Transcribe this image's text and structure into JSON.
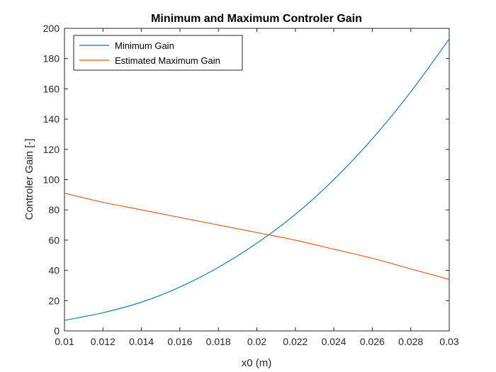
{
  "chart_data": {
    "type": "line",
    "title": "Minimum and Maximum Controler Gain",
    "xlabel": "x0 (m)",
    "ylabel": "Controler Gain [-]",
    "xlim": [
      0.01,
      0.03
    ],
    "ylim": [
      0,
      200
    ],
    "xticks": [
      0.01,
      0.012,
      0.014,
      0.016,
      0.018,
      0.02,
      0.022,
      0.024,
      0.026,
      0.028,
      0.03
    ],
    "xtick_labels": [
      "0.01",
      "0.012",
      "0.014",
      "0.016",
      "0.018",
      "0.02",
      "0.022",
      "0.024",
      "0.026",
      "0.028",
      "0.03"
    ],
    "yticks": [
      0,
      20,
      40,
      60,
      80,
      100,
      120,
      140,
      160,
      180,
      200
    ],
    "ytick_labels": [
      "0",
      "20",
      "40",
      "60",
      "80",
      "100",
      "120",
      "140",
      "160",
      "180",
      "200"
    ],
    "grid": false,
    "legend_position": "top-left",
    "series": [
      {
        "name": "Minimum Gain",
        "color": "#0072BD",
        "x": [
          0.01,
          0.012,
          0.014,
          0.016,
          0.018,
          0.02,
          0.022,
          0.024,
          0.026,
          0.028,
          0.03
        ],
        "y": [
          7,
          12,
          19,
          29,
          42,
          58,
          77,
          100,
          127,
          158,
          193
        ]
      },
      {
        "name": "Estimated Maximum Gain",
        "color": "#D95319",
        "x": [
          0.01,
          0.012,
          0.014,
          0.016,
          0.018,
          0.02,
          0.022,
          0.024,
          0.026,
          0.028,
          0.03
        ],
        "y": [
          91,
          85,
          80,
          75,
          70,
          65,
          60,
          54,
          48,
          41,
          34
        ]
      }
    ]
  }
}
